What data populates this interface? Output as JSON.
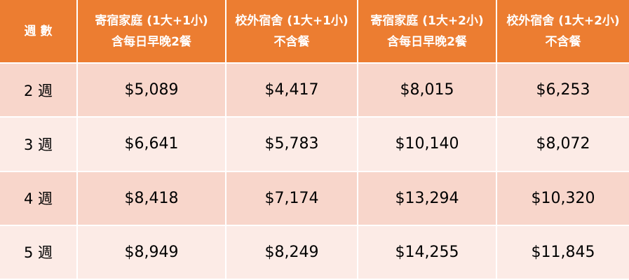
{
  "table": {
    "header": {
      "weeks_label": "週 數",
      "columns": [
        {
          "line1": "寄宿家庭 (1大+1小)",
          "line2": "含每日早晚2餐"
        },
        {
          "line1": "校外宿舍 (1大+1小)",
          "line2": "不含餐"
        },
        {
          "line1": "寄宿家庭 (1大+2小)",
          "line2": "含每日早晚2餐"
        },
        {
          "line1": "校外宿舍 (1大+2小)",
          "line2": "不含餐"
        }
      ]
    },
    "rows": [
      {
        "weeks": "2 週",
        "values": [
          "$5,089",
          "$4,417",
          "$8,015",
          "$6,253"
        ]
      },
      {
        "weeks": "3 週",
        "values": [
          "$6,641",
          "$5,783",
          "$10,140",
          "$8,072"
        ]
      },
      {
        "weeks": "4 週",
        "values": [
          "$8,418",
          "$7,174",
          "$13,294",
          "$10,320"
        ]
      },
      {
        "weeks": "5 週",
        "values": [
          "$8,949",
          "$8,249",
          "$14,255",
          "$11,845"
        ]
      }
    ],
    "colors": {
      "header_bg": "#ec7d31",
      "header_text": "#ffffff",
      "row_odd_bg": "#f8d6cb",
      "row_even_bg": "#fcebe6"
    }
  }
}
